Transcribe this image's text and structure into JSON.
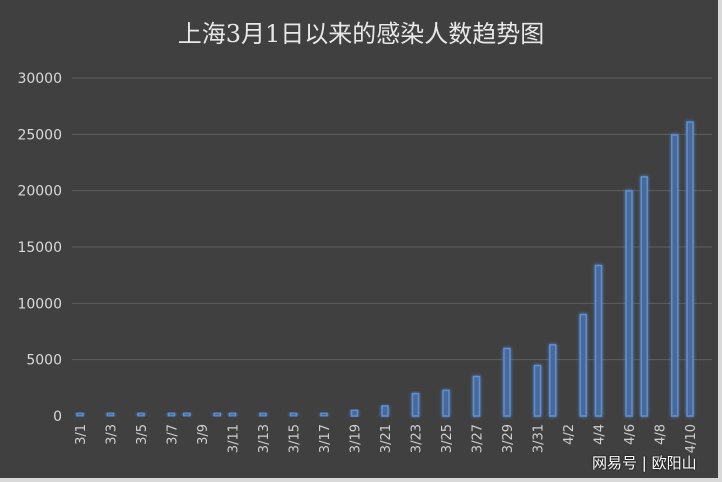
{
  "chart_data": {
    "type": "bar",
    "title": "上海3月1日以来的感染人数趋势图",
    "xlabel": "",
    "ylabel": "",
    "ylim": [
      0,
      30000
    ],
    "yticks": [
      "0",
      "5000",
      "10000",
      "15000",
      "20000",
      "25000",
      "30000"
    ],
    "grid": true,
    "categories": [
      "3/1",
      "3/2",
      "3/3",
      "3/4",
      "3/5",
      "3/6",
      "3/7",
      "3/8",
      "3/9",
      "3/10",
      "3/11",
      "3/12",
      "3/13",
      "3/14",
      "3/15",
      "3/16",
      "3/17",
      "3/18",
      "3/19",
      "3/20",
      "3/21",
      "3/22",
      "3/23",
      "3/24",
      "3/25",
      "3/26",
      "3/27",
      "3/28",
      "3/29",
      "3/30",
      "3/31",
      "4/1",
      "4/2",
      "4/3",
      "4/4",
      "4/5",
      "4/6",
      "4/7",
      "4/8",
      "4/9",
      "4/10"
    ],
    "tick_labels": [
      "3/1",
      "3/3",
      "3/5",
      "3/7",
      "3/9",
      "3/11",
      "3/13",
      "3/15",
      "3/17",
      "3/19",
      "3/21",
      "3/23",
      "3/25",
      "3/27",
      "3/29",
      "3/31",
      "4/2",
      "4/4",
      "4/6",
      "4/8",
      "4/10"
    ],
    "values": [
      2,
      null,
      5,
      null,
      3,
      null,
      51,
      62,
      null,
      75,
      83,
      null,
      169,
      null,
      202,
      null,
      260,
      null,
      510,
      null,
      896,
      null,
      1983,
      null,
      2269,
      null,
      3500,
      null,
      5982,
      null,
      4477,
      6311,
      null,
      9006,
      13354,
      null,
      19982,
      21222,
      null,
      24944,
      26087
    ],
    "bar_color": "#5b8fd6",
    "background": "#404040"
  },
  "watermark": "网易号 | 欧阳山"
}
